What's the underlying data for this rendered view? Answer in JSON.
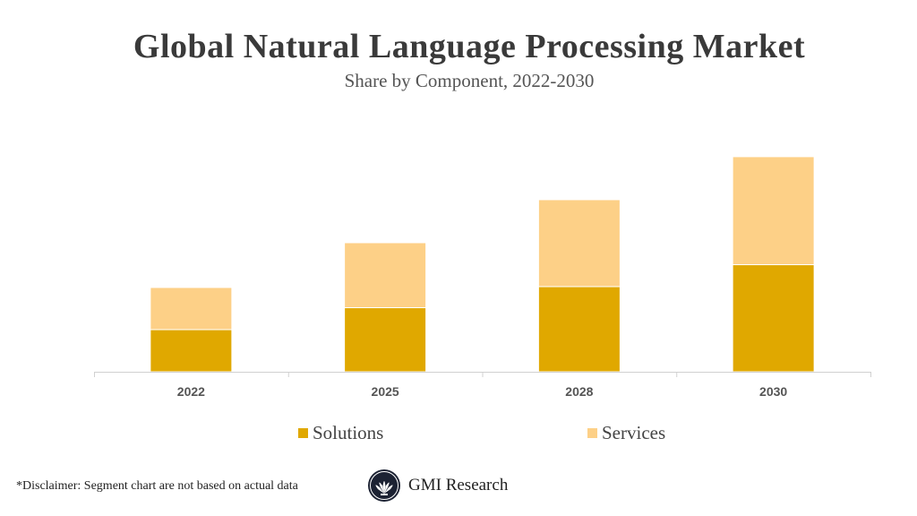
{
  "chart_data": {
    "type": "bar",
    "stacked": true,
    "title": "Global Natural Language Processing Market",
    "subtitle": "Share by Component, 2022-2030",
    "categories": [
      "2022",
      "2025",
      "2028",
      "2030"
    ],
    "series": [
      {
        "name": "Solutions",
        "color": "#E0A800",
        "values": [
          48,
          73,
          97,
          122
        ]
      },
      {
        "name": "Services",
        "color": "#FDD087",
        "values": [
          48,
          74,
          99,
          123
        ]
      }
    ],
    "xlabel": "",
    "ylabel": "",
    "ylim": [
      0,
      250
    ],
    "grid": false,
    "legend": "bottom"
  },
  "disclaimer": "*Disclaimer:  Segment chart are not based on actual data",
  "brand": "GMI Research"
}
